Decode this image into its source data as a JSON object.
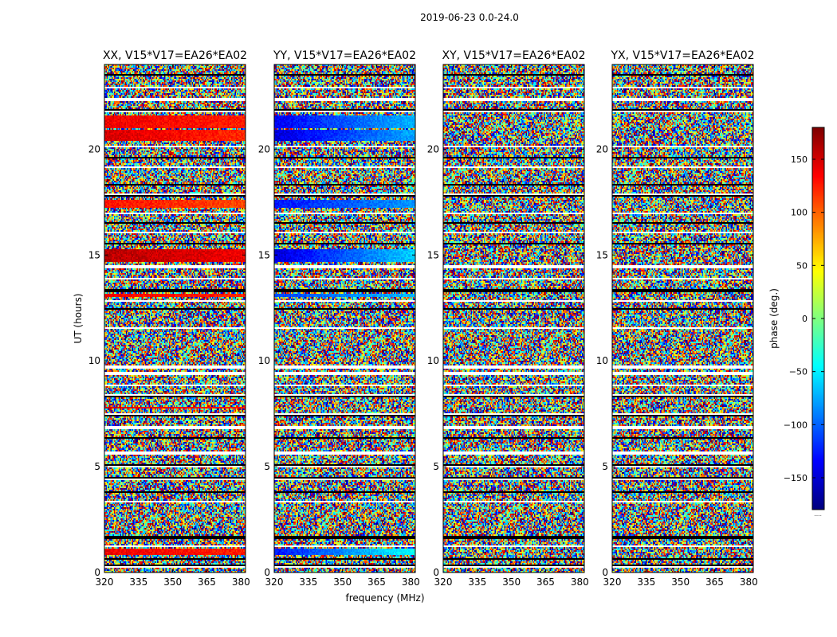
{
  "chart_data": {
    "type": "heatmap",
    "suptitle": "2019-06-23 0.0-24.0",
    "xlabel": "frequency (MHz)",
    "ylabel": "UT (hours)",
    "xlim": [
      320,
      382
    ],
    "ylim": [
      0,
      24
    ],
    "xticks": [
      320,
      335,
      350,
      365,
      380
    ],
    "yticks": [
      0,
      5,
      10,
      15,
      20
    ],
    "colorbar": {
      "label": "phase (deg.)",
      "range": [
        -180,
        180
      ],
      "ticks": [
        -150,
        -100,
        -50,
        0,
        50,
        100,
        150
      ],
      "tick_labels": [
        "−150",
        "−100",
        "−50",
        "0",
        "50",
        "100",
        "150"
      ],
      "colormap": "jet",
      "bottom_text": "....."
    },
    "panels": [
      {
        "title": "XX, V15*V17=EA26*EA02",
        "coherent_bands": [
          {
            "ut": [
              21.0,
              21.6
            ],
            "phase_low_freq": 140,
            "phase_high_freq": 125
          },
          {
            "ut": [
              20.4,
              20.95
            ],
            "phase_low_freq": 150,
            "phase_high_freq": 120
          },
          {
            "ut": [
              17.2,
              17.6
            ],
            "phase_low_freq": 130,
            "phase_high_freq": 110
          },
          {
            "ut": [
              14.65,
              15.3
            ],
            "phase_low_freq": 160,
            "phase_high_freq": 140
          },
          {
            "ut": [
              13.0,
              13.15
            ],
            "phase_low_freq": 140,
            "phase_high_freq": 120
          },
          {
            "ut": [
              7.75,
              7.85
            ],
            "phase_low_freq": 150,
            "phase_high_freq": 130
          },
          {
            "ut": [
              0.85,
              1.1
            ],
            "phase_low_freq": 140,
            "phase_high_freq": 125
          }
        ]
      },
      {
        "title": "YY, V15*V17=EA26*EA02",
        "coherent_bands": [
          {
            "ut": [
              21.0,
              21.6
            ],
            "phase_low_freq": -140,
            "phase_high_freq": -70
          },
          {
            "ut": [
              20.4,
              20.95
            ],
            "phase_low_freq": -150,
            "phase_high_freq": -75
          },
          {
            "ut": [
              17.2,
              17.6
            ],
            "phase_low_freq": -130,
            "phase_high_freq": -80
          },
          {
            "ut": [
              14.65,
              15.3
            ],
            "phase_low_freq": -150,
            "phase_high_freq": -60
          },
          {
            "ut": [
              13.0,
              13.15
            ],
            "phase_low_freq": -110,
            "phase_high_freq": -70
          },
          {
            "ut": [
              0.85,
              1.1
            ],
            "phase_low_freq": -130,
            "phase_high_freq": -40
          }
        ]
      },
      {
        "title": "XY, V15*V17=EA26*EA02",
        "coherent_bands": []
      },
      {
        "title": "YX, V15*V17=EA26*EA02",
        "coherent_bands": []
      }
    ],
    "flagged_gaps_ut": [
      [
        0.25,
        0.35
      ],
      [
        0.6,
        0.7
      ],
      [
        1.2,
        1.3
      ],
      [
        1.6,
        1.7
      ],
      [
        3.3,
        3.4
      ],
      [
        3.75,
        3.85
      ],
      [
        4.4,
        4.5
      ],
      [
        5.0,
        5.1
      ],
      [
        5.6,
        5.7
      ],
      [
        6.3,
        6.4
      ],
      [
        6.8,
        6.9
      ],
      [
        7.35,
        7.5
      ],
      [
        8.3,
        8.4
      ],
      [
        8.8,
        8.9
      ],
      [
        9.3,
        9.45
      ],
      [
        9.65,
        9.8
      ],
      [
        11.5,
        11.6
      ],
      [
        12.4,
        12.5
      ],
      [
        12.8,
        12.9
      ],
      [
        13.25,
        13.4
      ],
      [
        13.85,
        13.95
      ],
      [
        14.35,
        14.5
      ],
      [
        15.5,
        15.6
      ],
      [
        16.0,
        16.1
      ],
      [
        16.45,
        16.55
      ],
      [
        16.9,
        17.0
      ],
      [
        17.75,
        17.9
      ],
      [
        18.25,
        18.35
      ],
      [
        19.1,
        19.2
      ],
      [
        19.55,
        19.65
      ],
      [
        20.1,
        20.2
      ],
      [
        21.75,
        21.9
      ],
      [
        22.3,
        22.4
      ],
      [
        22.85,
        22.95
      ],
      [
        23.45,
        23.55
      ]
    ],
    "grid": false
  }
}
